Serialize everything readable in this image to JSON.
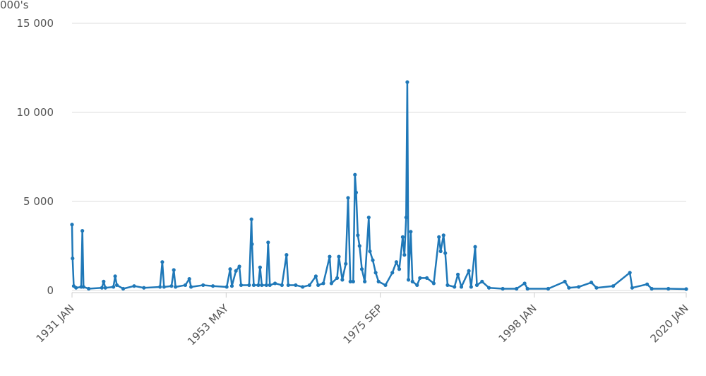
{
  "chart_data": {
    "type": "line",
    "y_label": "000's",
    "x": [
      "1931-01",
      "1931-02",
      "1931-04",
      "1931-08",
      "1932-05",
      "1932-07",
      "1932-09",
      "1933-06",
      "1935-05",
      "1935-08",
      "1935-11",
      "1937-01",
      "1937-04",
      "1937-07",
      "1938-06",
      "1940-01",
      "1941-06",
      "1943-10",
      "1944-02",
      "1944-05",
      "1945-06",
      "1945-10",
      "1946-01",
      "1947-06",
      "1948-01",
      "1948-04",
      "1950-01",
      "1951-06",
      "1953-06",
      "1953-12",
      "1954-03",
      "1954-10",
      "1955-04",
      "1955-07",
      "1956-09",
      "1957-01",
      "1957-02",
      "1957-05",
      "1958-01",
      "1958-04",
      "1958-07",
      "1959-03",
      "1959-06",
      "1959-09",
      "1960-06",
      "1961-06",
      "1962-02",
      "1962-05",
      "1963-06",
      "1964-06",
      "1965-06",
      "1966-05",
      "1966-09",
      "1967-06",
      "1968-05",
      "1968-08",
      "1969-06",
      "1969-09",
      "1970-03",
      "1970-09",
      "1971-01",
      "1971-05",
      "1971-10",
      "1972-01",
      "1972-03",
      "1972-06",
      "1972-09",
      "1973-01",
      "1973-06",
      "1974-01",
      "1974-03",
      "1974-08",
      "1975-01",
      "1975-06",
      "1976-06",
      "1977-06",
      "1978-01",
      "1978-06",
      "1978-12",
      "1979-03",
      "1979-06",
      "1979-08",
      "1979-10",
      "1980-02",
      "1980-05",
      "1981-01",
      "1981-06",
      "1982-06",
      "1983-06",
      "1984-03",
      "1984-06",
      "1984-11",
      "1985-02",
      "1985-06",
      "1986-06",
      "1986-12",
      "1987-06",
      "1988-07",
      "1988-11",
      "1989-06",
      "1989-09",
      "1990-06",
      "1991-06",
      "1993-06",
      "1995-06",
      "1996-08",
      "1997-01",
      "2000-01",
      "2002-06",
      "2003-01",
      "2004-06",
      "2006-04",
      "2007-01",
      "2009-06",
      "2011-11",
      "2012-03",
      "2014-05",
      "2015-01",
      "2017-06",
      "2020-01"
    ],
    "series": [
      {
        "color": "#1f78b8",
        "values": [
          3700,
          1800,
          250,
          150,
          200,
          3350,
          200,
          100,
          150,
          500,
          150,
          200,
          800,
          300,
          100,
          250,
          150,
          200,
          1600,
          200,
          250,
          1150,
          200,
          300,
          650,
          200,
          300,
          250,
          200,
          1200,
          250,
          1100,
          1350,
          300,
          300,
          4000,
          2600,
          300,
          300,
          1300,
          300,
          300,
          2700,
          300,
          400,
          300,
          2000,
          300,
          300,
          200,
          300,
          800,
          300,
          400,
          1900,
          400,
          700,
          1900,
          600,
          1500,
          5200,
          500,
          500,
          6500,
          5500,
          3100,
          2500,
          1200,
          500,
          4100,
          2200,
          1700,
          1000,
          500,
          300,
          1000,
          1600,
          1200,
          3000,
          2000,
          4100,
          11700,
          600,
          3300,
          500,
          300,
          700,
          700,
          400,
          3000,
          2200,
          3100,
          2100,
          300,
          200,
          900,
          200,
          1100,
          200,
          2450,
          300,
          500,
          150,
          100,
          100,
          400,
          100,
          100,
          500,
          150,
          200,
          450,
          150,
          250,
          1000,
          150,
          350,
          100,
          100,
          80
        ]
      }
    ],
    "xlim": [
      "1931-01",
      "2020-01"
    ],
    "xticks": [
      {
        "value": "1931-01",
        "label": "1931 JAN"
      },
      {
        "value": "1953-05",
        "label": "1953 MAY"
      },
      {
        "value": "1975-09",
        "label": "1975 SEP"
      },
      {
        "value": "1998-01",
        "label": "1998 JAN"
      },
      {
        "value": "2020-01",
        "label": "2020 JAN"
      }
    ],
    "ylim": [
      0,
      15000
    ],
    "yticks": [
      0,
      {
        "value": 5000,
        "label": "5 000"
      },
      {
        "value": 10000,
        "label": "10 000"
      },
      {
        "value": 15000,
        "label": "15 000"
      }
    ],
    "grid": true
  }
}
